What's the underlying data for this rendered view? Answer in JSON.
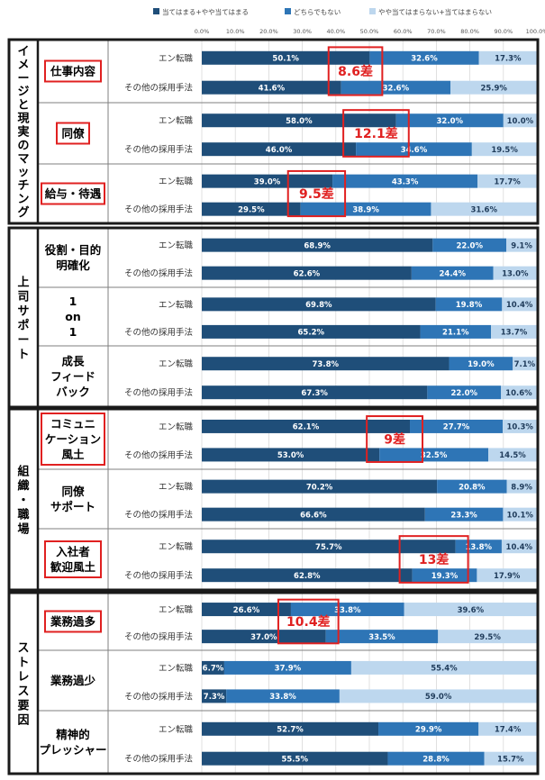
{
  "chart_data": {
    "type": "bar",
    "orientation": "horizontal",
    "stacked": true,
    "xlim": [
      0,
      100
    ],
    "grid": true,
    "legend_position": "top",
    "x_ticks": [
      "0.0%",
      "10.0%",
      "20.0%",
      "30.0%",
      "40.0%",
      "50.0%",
      "60.0%",
      "70.0%",
      "80.0%",
      "90.0%",
      "100.0%"
    ],
    "series": [
      {
        "name": "当てはまる+やや当てはまる",
        "color": "#1f4e79"
      },
      {
        "name": "どちらでもない",
        "color": "#2e75b6"
      },
      {
        "name": "やや当てはまらない+当てはまらない",
        "color": "#bdd7ee"
      }
    ],
    "row_labels": [
      "エン転職",
      "その他の採用手法"
    ],
    "groups": [
      {
        "name": "イメージと現実のマッチング",
        "items": [
          {
            "label": "仕事内容",
            "boxed": true,
            "diff": "8.6差",
            "rows": [
              {
                "values": [
                  50.1,
                  32.6,
                  17.3
                ],
                "labels": [
                  "50.1%",
                  "32.6%",
                  "17.3%"
                ]
              },
              {
                "values": [
                  41.6,
                  32.6,
                  25.9
                ],
                "labels": [
                  "41.6%",
                  "32.6%",
                  "25.9%"
                ]
              }
            ]
          },
          {
            "label": "同僚",
            "boxed": true,
            "diff": "12.1差",
            "rows": [
              {
                "values": [
                  58.0,
                  32.0,
                  10.0
                ],
                "labels": [
                  "58.0%",
                  "32.0%",
                  "10.0%"
                ]
              },
              {
                "values": [
                  46.0,
                  34.6,
                  19.5
                ],
                "labels": [
                  "46.0%",
                  "34.6%",
                  "19.5%"
                ]
              }
            ]
          },
          {
            "label": "給与・待遇",
            "boxed": true,
            "diff": "9.5差",
            "rows": [
              {
                "values": [
                  39.0,
                  43.3,
                  17.7
                ],
                "labels": [
                  "39.0%",
                  "43.3%",
                  "17.7%"
                ]
              },
              {
                "values": [
                  29.5,
                  38.9,
                  31.6
                ],
                "labels": [
                  "29.5%",
                  "38.9%",
                  "31.6%"
                ]
              }
            ]
          }
        ]
      },
      {
        "name": "上司サポート",
        "items": [
          {
            "label": "役割・目的 明確化",
            "boxed": false,
            "diff": "",
            "rows": [
              {
                "values": [
                  68.9,
                  22.0,
                  9.1
                ],
                "labels": [
                  "68.9%",
                  "22.0%",
                  "9.1%"
                ]
              },
              {
                "values": [
                  62.6,
                  24.4,
                  13.0
                ],
                "labels": [
                  "62.6%",
                  "24.4%",
                  "13.0%"
                ]
              }
            ]
          },
          {
            "label": "1 on 1",
            "boxed": false,
            "diff": "",
            "rows": [
              {
                "values": [
                  69.8,
                  19.8,
                  10.4
                ],
                "labels": [
                  "69.8%",
                  "19.8%",
                  "10.4%"
                ]
              },
              {
                "values": [
                  65.2,
                  21.1,
                  13.7
                ],
                "labels": [
                  "65.2%",
                  "21.1%",
                  "13.7%"
                ]
              }
            ]
          },
          {
            "label": "成長 フィード バック",
            "boxed": false,
            "diff": "",
            "rows": [
              {
                "values": [
                  73.8,
                  19.0,
                  7.1
                ],
                "labels": [
                  "73.8%",
                  "19.0%",
                  "7.1%"
                ]
              },
              {
                "values": [
                  67.3,
                  22.0,
                  10.6
                ],
                "labels": [
                  "67.3%",
                  "22.0%",
                  "10.6%"
                ]
              }
            ]
          }
        ]
      },
      {
        "name": "組織・職場",
        "items": [
          {
            "label": "コミュニ ケーション 風土",
            "boxed": true,
            "diff": "9差",
            "rows": [
              {
                "values": [
                  62.1,
                  27.7,
                  10.3
                ],
                "labels": [
                  "62.1%",
                  "27.7%",
                  "10.3%"
                ]
              },
              {
                "values": [
                  53.0,
                  32.5,
                  14.5
                ],
                "labels": [
                  "53.0%",
                  "32.5%",
                  "14.5%"
                ]
              }
            ]
          },
          {
            "label": "同僚 サポート",
            "boxed": false,
            "diff": "",
            "rows": [
              {
                "values": [
                  70.2,
                  20.8,
                  8.9
                ],
                "labels": [
                  "70.2%",
                  "20.8%",
                  "8.9%"
                ]
              },
              {
                "values": [
                  66.6,
                  23.3,
                  10.1
                ],
                "labels": [
                  "66.6%",
                  "23.3%",
                  "10.1%"
                ]
              }
            ]
          },
          {
            "label": "入社者 歓迎風土",
            "boxed": true,
            "diff": "13差",
            "rows": [
              {
                "values": [
                  75.7,
                  13.8,
                  10.4
                ],
                "labels": [
                  "75.7%",
                  "13.8%",
                  "10.4%"
                ]
              },
              {
                "values": [
                  62.8,
                  19.3,
                  17.9
                ],
                "labels": [
                  "62.8%",
                  "19.3%",
                  "17.9%"
                ]
              }
            ]
          }
        ]
      },
      {
        "name": "ストレス要因",
        "items": [
          {
            "label": "業務過多",
            "boxed": true,
            "diff": "10.4差",
            "rows": [
              {
                "values": [
                  26.6,
                  33.8,
                  39.6
                ],
                "labels": [
                  "26.6%",
                  "33.8%",
                  "39.6%"
                ]
              },
              {
                "values": [
                  37.0,
                  33.5,
                  29.5
                ],
                "labels": [
                  "37.0%",
                  "33.5%",
                  "29.5%"
                ]
              }
            ]
          },
          {
            "label": "業務過少",
            "boxed": false,
            "diff": "",
            "rows": [
              {
                "values": [
                  6.7,
                  37.9,
                  55.4
                ],
                "labels": [
                  "6.7%",
                  "37.9%",
                  "55.4%"
                ]
              },
              {
                "values": [
                  7.3,
                  33.8,
                  59.0
                ],
                "labels": [
                  "7.3%",
                  "33.8%",
                  "59.0%"
                ]
              }
            ]
          },
          {
            "label": "精神的 プレッシャー",
            "boxed": false,
            "diff": "",
            "rows": [
              {
                "values": [
                  52.7,
                  29.9,
                  17.4
                ],
                "labels": [
                  "52.7%",
                  "29.9%",
                  "17.4%"
                ]
              },
              {
                "values": [
                  55.5,
                  28.8,
                  15.7
                ],
                "labels": [
                  "55.5%",
                  "28.8%",
                  "15.7%"
                ]
              }
            ]
          }
        ]
      }
    ]
  }
}
